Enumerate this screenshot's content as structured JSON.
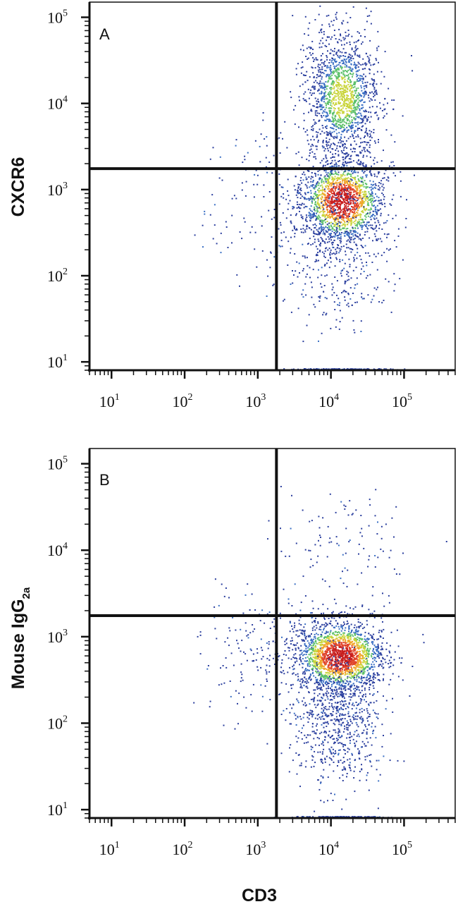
{
  "chart_data": [
    {
      "type": "scatter",
      "panel_label": "A",
      "xlabel": "",
      "ylabel": "CXCR6",
      "x_scale": "log",
      "y_scale": "log",
      "xlim": [
        5,
        500000
      ],
      "ylim": [
        8,
        150000
      ],
      "x_ticks": [
        {
          "base": "10",
          "exp": "1"
        },
        {
          "base": "10",
          "exp": "2"
        },
        {
          "base": "10",
          "exp": "3"
        },
        {
          "base": "10",
          "exp": "4"
        },
        {
          "base": "10",
          "exp": "5"
        }
      ],
      "y_ticks": [
        {
          "base": "10",
          "exp": "1"
        },
        {
          "base": "10",
          "exp": "2"
        },
        {
          "base": "10",
          "exp": "3"
        },
        {
          "base": "10",
          "exp": "4"
        },
        {
          "base": "10",
          "exp": "5"
        }
      ],
      "quadrant_gate": {
        "x": 1800,
        "y": 1750
      },
      "populations": [
        {
          "center": [
            14000,
            750
          ],
          "spread": [
            0.28,
            0.24
          ],
          "count": 1700,
          "density": "high"
        },
        {
          "center": [
            14000,
            12000
          ],
          "spread": [
            0.25,
            0.38
          ],
          "count": 1500,
          "density": "medium"
        },
        {
          "center": [
            12000,
            200
          ],
          "spread": [
            0.35,
            0.45
          ],
          "count": 450,
          "density": "low"
        },
        {
          "center": [
            1500,
            800
          ],
          "spread": [
            0.45,
            0.5
          ],
          "count": 160,
          "density": "low"
        },
        {
          "center": [
            14000,
            9
          ],
          "spread": [
            0.3,
            0.0
          ],
          "count": 220,
          "density": "low"
        }
      ],
      "grid": false
    },
    {
      "type": "scatter",
      "panel_label": "B",
      "xlabel": "CD3",
      "ylabel": "Mouse IgG",
      "ylabel_subscript": "2a",
      "x_scale": "log",
      "y_scale": "log",
      "xlim": [
        5,
        500000
      ],
      "ylim": [
        8,
        150000
      ],
      "x_ticks": [
        {
          "base": "10",
          "exp": "1"
        },
        {
          "base": "10",
          "exp": "2"
        },
        {
          "base": "10",
          "exp": "3"
        },
        {
          "base": "10",
          "exp": "4"
        },
        {
          "base": "10",
          "exp": "5"
        }
      ],
      "y_ticks": [
        {
          "base": "10",
          "exp": "1"
        },
        {
          "base": "10",
          "exp": "2"
        },
        {
          "base": "10",
          "exp": "3"
        },
        {
          "base": "10",
          "exp": "4"
        },
        {
          "base": "10",
          "exp": "5"
        }
      ],
      "quadrant_gate": {
        "x": 1800,
        "y": 1750
      },
      "populations": [
        {
          "center": [
            13000,
            600
          ],
          "spread": [
            0.3,
            0.2
          ],
          "count": 2000,
          "density": "high"
        },
        {
          "center": [
            12000,
            110
          ],
          "spread": [
            0.3,
            0.35
          ],
          "count": 700,
          "density": "low"
        },
        {
          "center": [
            14000,
            9000
          ],
          "spread": [
            0.4,
            0.45
          ],
          "count": 120,
          "density": "low"
        },
        {
          "center": [
            1200,
            700
          ],
          "spread": [
            0.45,
            0.35
          ],
          "count": 200,
          "density": "low"
        },
        {
          "center": [
            14000,
            9
          ],
          "spread": [
            0.3,
            0.0
          ],
          "count": 200,
          "density": "low"
        }
      ],
      "grid": false
    }
  ],
  "colors": {
    "axis": "#111111",
    "gate": "#111111",
    "density_scale": [
      "#2b3f9e",
      "#3a6fc4",
      "#3fb0c8",
      "#5cc06a",
      "#c9d43a",
      "#f1a52a",
      "#e0442a",
      "#c81e1e"
    ]
  }
}
